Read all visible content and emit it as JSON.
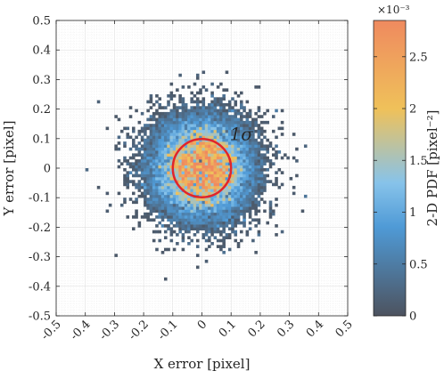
{
  "chart_data": {
    "type": "heatmap",
    "title": "",
    "xlabel": "X error [pixel]",
    "ylabel": "Y error [pixel]",
    "xlim": [
      -0.5,
      0.5
    ],
    "ylim": [
      -0.5,
      0.5
    ],
    "grid": true,
    "x_ticks": [
      "-0.5",
      "-0.4",
      "-0.3",
      "-0.2",
      "-0.1",
      "0",
      "0.1",
      "0.2",
      "0.3",
      "0.4",
      "0.5"
    ],
    "y_ticks": [
      "0.5",
      "0.4",
      "0.3",
      "0.2",
      "0.1",
      "0",
      "-0.1",
      "-0.2",
      "-0.3",
      "-0.4",
      "-0.5"
    ],
    "bin_size": 0.01,
    "distribution": {
      "shape": "2-D Gaussian (scattered 2-D histogram)",
      "center": [
        0,
        0
      ],
      "sigma": 0.1,
      "peak_pdf": 2.8,
      "pdf_units": "x10^-3 pixel^-2",
      "extent_radius": 0.45
    },
    "annotation": {
      "label": "1σ",
      "circle_center": [
        0,
        0
      ],
      "circle_radius": 0.1,
      "color": "#e0252b"
    },
    "colorbar": {
      "label": "2-D PDF [pixel⁻²]",
      "exponent_label": "×10⁻³",
      "range": [
        0,
        2.85
      ],
      "ticks": [
        "0",
        "0.5",
        "1",
        "1.5",
        "2",
        "2.5"
      ],
      "colormap": [
        "#4d535f",
        "#4f9ad6",
        "#87c3ea",
        "#efc15a",
        "#ef8a5f"
      ]
    }
  }
}
